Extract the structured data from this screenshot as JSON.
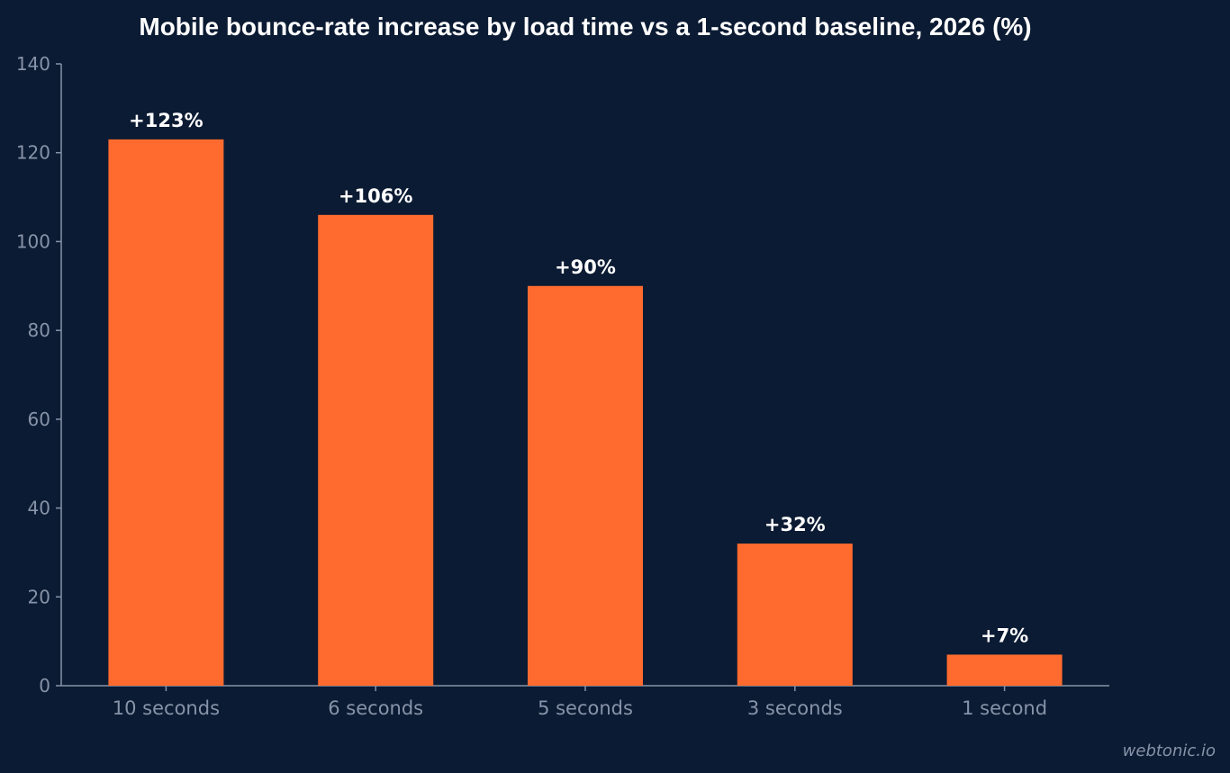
{
  "colors": {
    "background": "#0b1b33",
    "bar": "#ff6b2e",
    "axis": "#8793a8",
    "tick_text": "#8793a8",
    "label_text": "#ffffff"
  },
  "chart_data": {
    "type": "bar",
    "title": "Mobile bounce-rate increase by load time vs a 1-second baseline, 2026 (%)",
    "categories": [
      "10 seconds",
      "6 seconds",
      "5 seconds",
      "3 seconds",
      "1 second"
    ],
    "values": [
      123,
      106,
      90,
      32,
      7
    ],
    "data_labels": [
      "+123%",
      "+106%",
      "+90%",
      "+32%",
      "+7%"
    ],
    "xlabel": "",
    "ylabel": "",
    "ylim": [
      0,
      140
    ],
    "yticks": [
      0,
      20,
      40,
      60,
      80,
      100,
      120,
      140
    ],
    "grid": false,
    "legend": "none"
  },
  "watermark": "webtonic.io"
}
